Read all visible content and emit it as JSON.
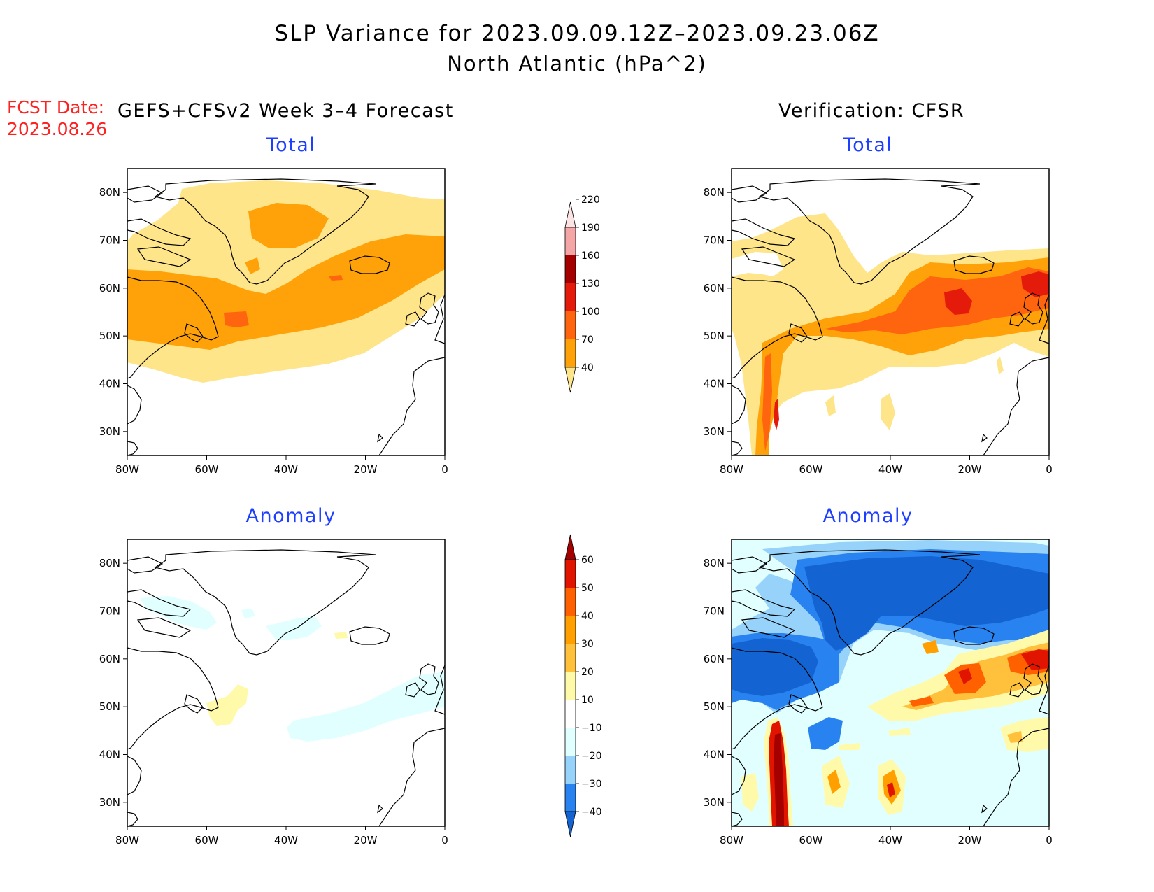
{
  "title": "SLP Variance for 2023.09.09.12Z–2023.09.23.06Z",
  "subtitle": "North Atlantic (hPa^2)",
  "fcst_label": "FCST Date:",
  "fcst_date": "2023.08.26",
  "forecast_header": "GEFS+CFSv2 Week 3–4 Forecast",
  "verification_header": "Verification: CFSR",
  "panels": {
    "top_left": "Total",
    "top_right": "Total",
    "bottom_left": "Anomaly",
    "bottom_right": "Anomaly"
  },
  "map_axes": {
    "lon_labels": [
      "80W",
      "60W",
      "40W",
      "20W",
      "0"
    ],
    "lat_labels": [
      "80N",
      "70N",
      "60N",
      "50N",
      "40N",
      "30N"
    ]
  },
  "colorbar_total": {
    "levels": [
      "40",
      "70",
      "100",
      "130",
      "160",
      "190",
      "220"
    ],
    "colors": [
      "#fee58a",
      "#ffa20a",
      "#ff640f",
      "#e41a0a",
      "#a50000",
      "#f4a6a6",
      "#fde4e4"
    ]
  },
  "colorbar_anomaly": {
    "levels": [
      "−40",
      "−30",
      "−20",
      "−10",
      "10",
      "20",
      "30",
      "40",
      "50",
      "60"
    ],
    "colors": [
      "#1463d2",
      "#2882f0",
      "#96d2fa",
      "#e1ffff",
      "#ffffff",
      "#fffaaa",
      "#ffc03c",
      "#ffa000",
      "#ff6000",
      "#e11400",
      "#a50000"
    ]
  }
}
